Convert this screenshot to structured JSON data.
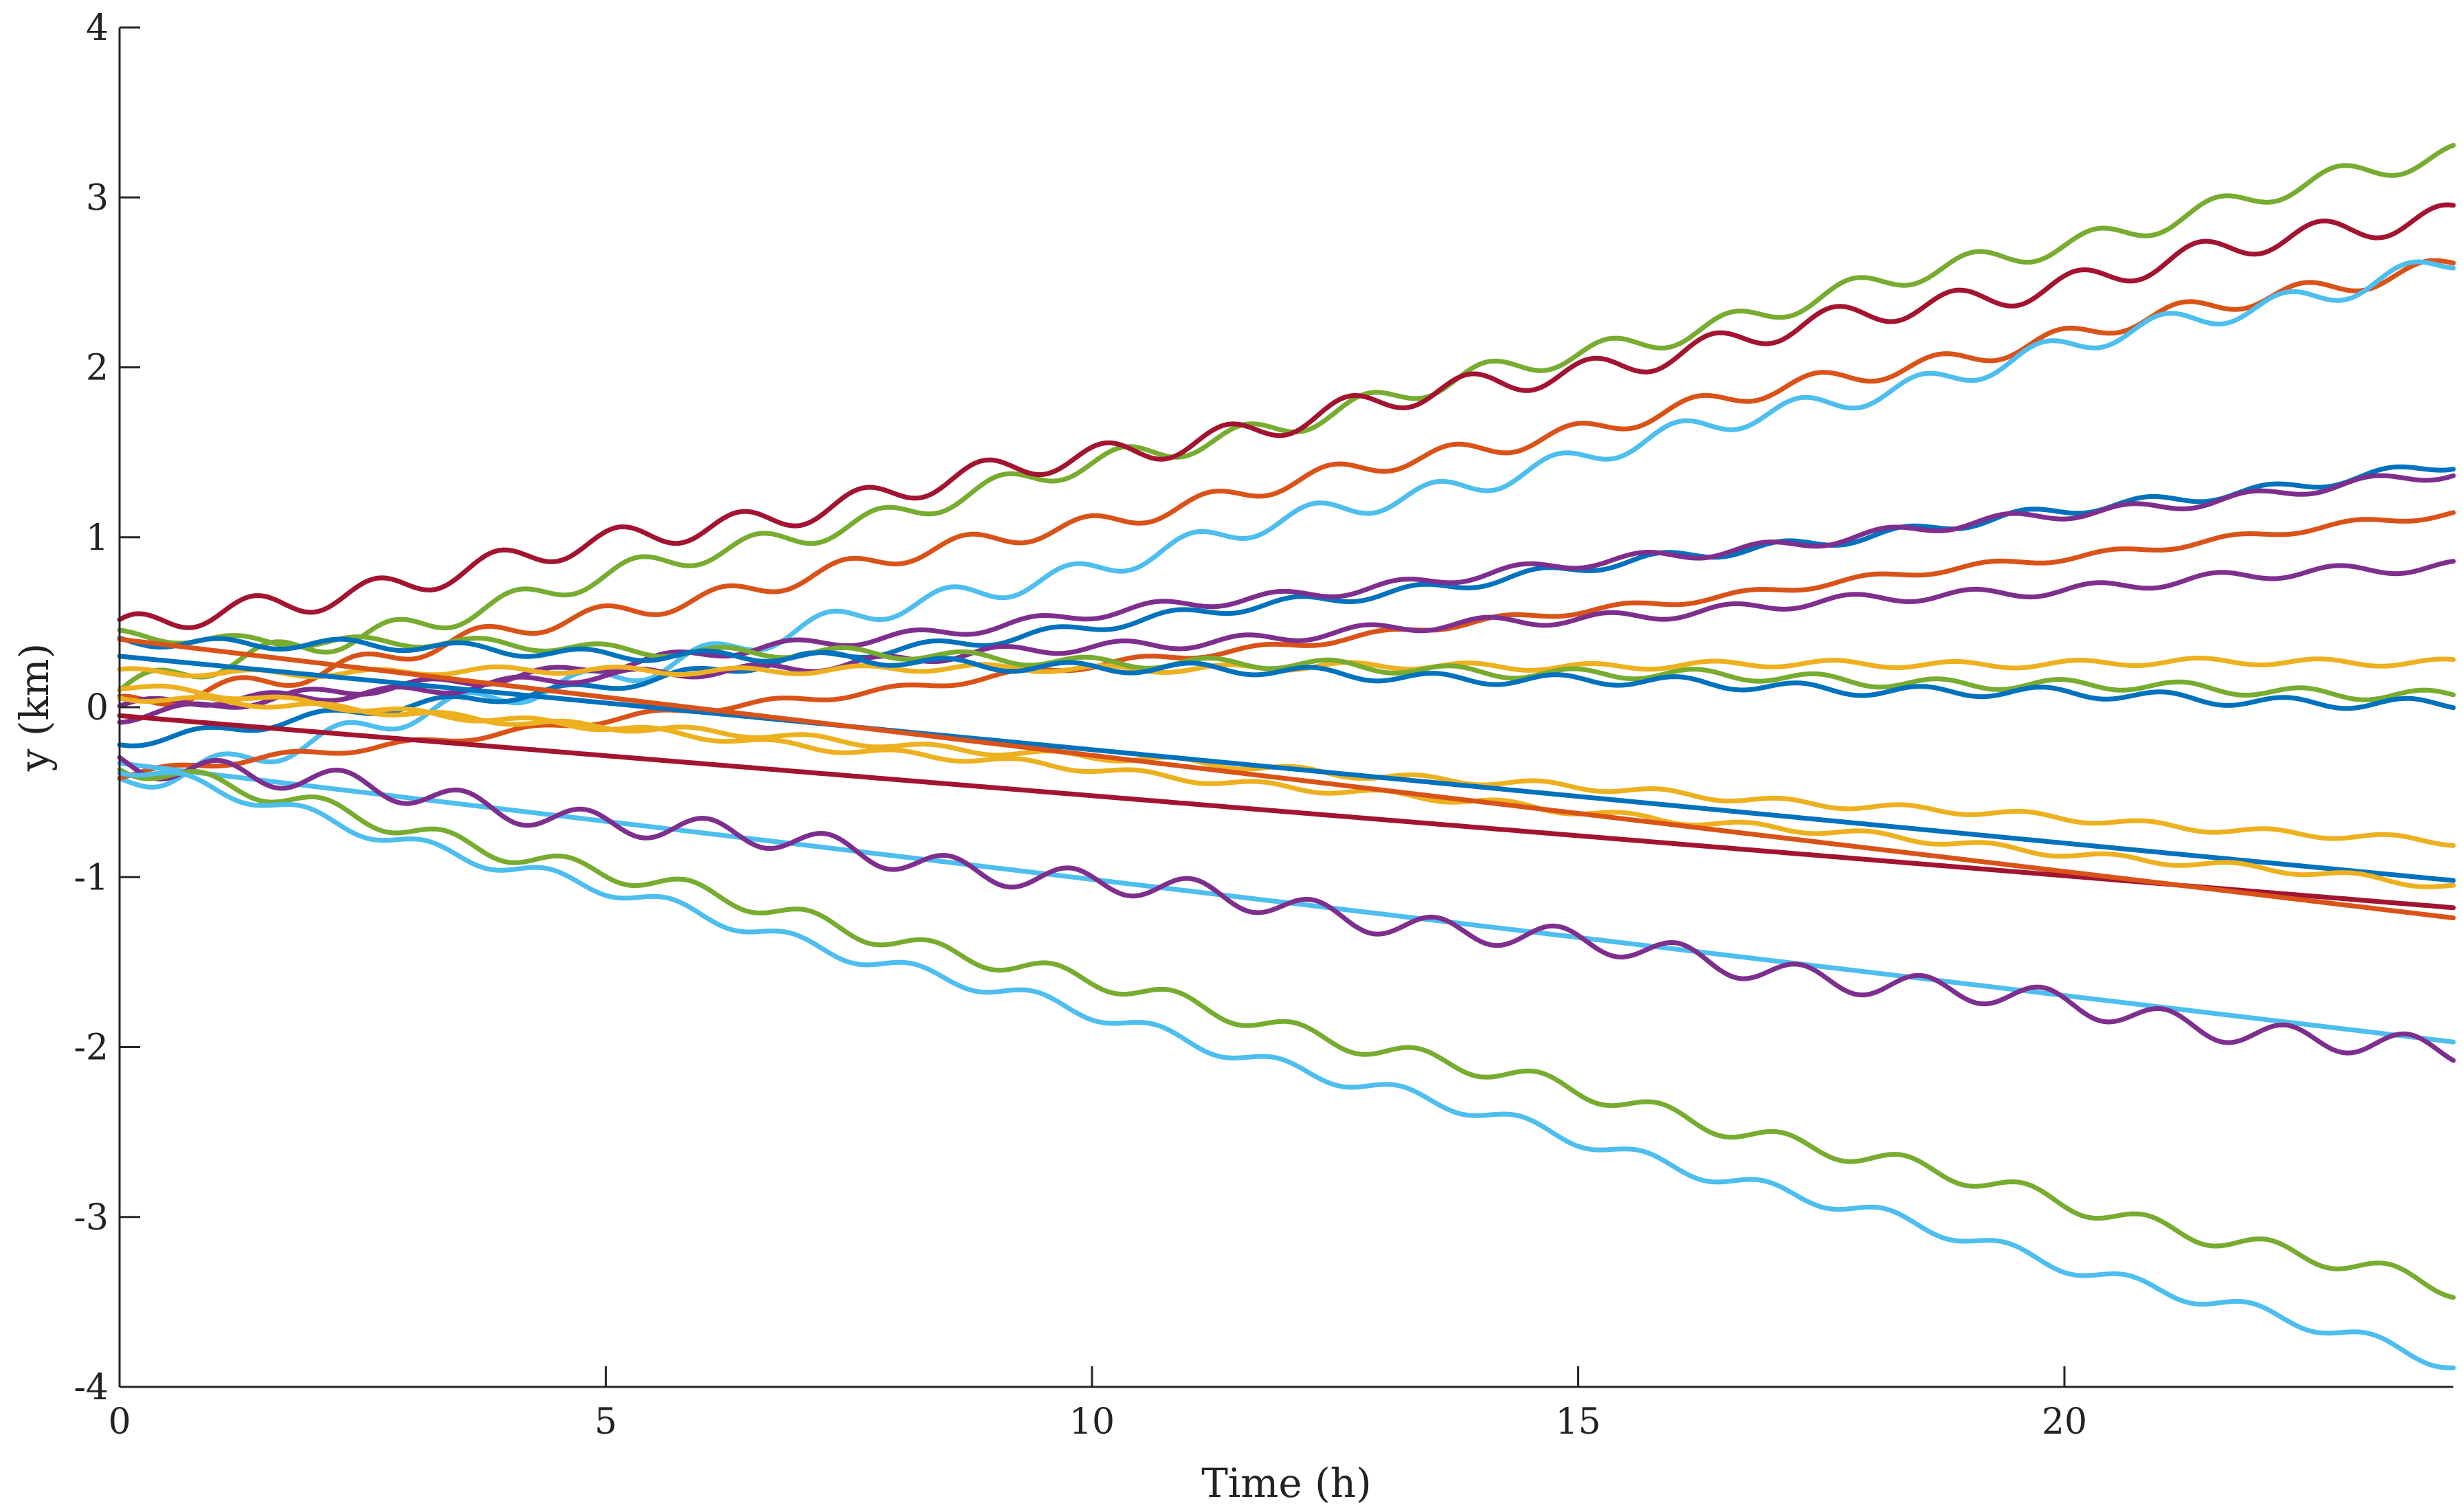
{
  "chart_data": {
    "type": "line",
    "title": "",
    "xlabel": "Time (h)",
    "ylabel": "y (km)",
    "xlim": [
      0,
      24
    ],
    "ylim": [
      -4,
      4
    ],
    "xticks": [
      0,
      5,
      10,
      15,
      20
    ],
    "yticks": [
      -4,
      -3,
      -2,
      -1,
      0,
      1,
      2,
      3,
      4
    ],
    "xtick_labels": [
      "0",
      "5",
      "10",
      "15",
      "20"
    ],
    "ytick_labels": [
      "-4",
      "-3",
      "-2",
      "-1",
      "0",
      "1",
      "2",
      "3",
      "4"
    ],
    "grid": false,
    "legend": "none",
    "colors": {
      "blue": "#0072BD",
      "orange": "#D95319",
      "yellow": "#EDB120",
      "purple": "#7E2F8E",
      "green": "#77AC30",
      "cyan": "#4DBEEE",
      "darkred": "#A2142F"
    },
    "series": [
      {
        "name": "green-top",
        "color": "#77AC30",
        "start": 0.1,
        "end": 3.26,
        "osc": 0.06
      },
      {
        "name": "darkred-top",
        "color": "#A2142F",
        "start": 0.44,
        "end": 2.92,
        "osc": 0.07
      },
      {
        "name": "orange-top",
        "color": "#D95319",
        "start": 0.0,
        "end": 2.62,
        "osc": 0.05
      },
      {
        "name": "cyan-top",
        "color": "#4DBEEE",
        "start": -0.45,
        "end": 2.62,
        "osc": 0.06
      },
      {
        "name": "blue-up",
        "color": "#0072BD",
        "start": -0.2,
        "end": 1.42,
        "osc": 0.03
      },
      {
        "name": "purple-up",
        "color": "#7E2F8E",
        "start": -0.05,
        "end": 1.37,
        "osc": 0.03
      },
      {
        "name": "orange-up",
        "color": "#D95319",
        "start": -0.4,
        "end": 1.14,
        "osc": 0.02
      },
      {
        "name": "purple-mid",
        "color": "#7E2F8E",
        "start": 0.0,
        "end": 0.84,
        "osc": 0.03
      },
      {
        "name": "yellow-flat",
        "color": "#EDB120",
        "start": 0.2,
        "end": 0.27,
        "osc": 0.02
      },
      {
        "name": "green-flat",
        "color": "#77AC30",
        "start": 0.42,
        "end": 0.07,
        "osc": 0.03
      },
      {
        "name": "blue-flat",
        "color": "#0072BD",
        "start": 0.4,
        "end": 0.01,
        "osc": 0.03
      },
      {
        "name": "yellow-d1",
        "color": "#EDB120",
        "start": 0.07,
        "end": -0.8,
        "osc": 0.02
      },
      {
        "name": "blue-down",
        "color": "#0072BD",
        "start": 0.3,
        "end": -1.02,
        "osc": 0.0
      },
      {
        "name": "yellow-d2",
        "color": "#EDB120",
        "start": 0.12,
        "end": -1.05,
        "osc": 0.02
      },
      {
        "name": "darkred-d",
        "color": "#A2142F",
        "start": -0.05,
        "end": -1.18,
        "osc": 0.0
      },
      {
        "name": "orange-d",
        "color": "#D95319",
        "start": 0.4,
        "end": -1.24,
        "osc": 0.0
      },
      {
        "name": "cyan-mid",
        "color": "#4DBEEE",
        "start": -0.33,
        "end": -1.97,
        "osc": 0.0
      },
      {
        "name": "purple-down",
        "color": "#7E2F8E",
        "start": -0.3,
        "end": -2.05,
        "osc": 0.07
      },
      {
        "name": "green-down",
        "color": "#77AC30",
        "start": -0.33,
        "end": -3.43,
        "osc": 0.05
      },
      {
        "name": "cyan-down",
        "color": "#4DBEEE",
        "start": -0.35,
        "end": -3.86,
        "osc": 0.04
      }
    ]
  }
}
